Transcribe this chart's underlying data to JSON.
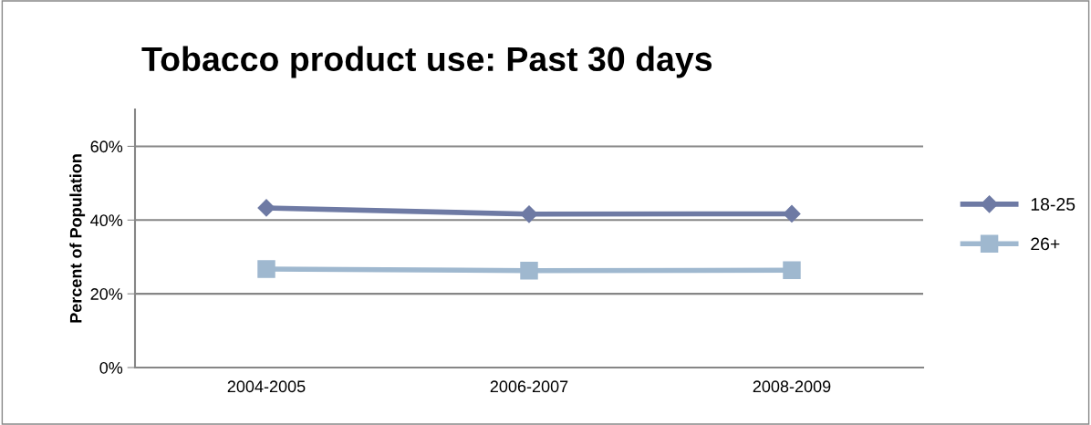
{
  "chart_data": {
    "type": "line",
    "title": "Tobacco product use: Past 30 days",
    "ylabel": "Percent of Population",
    "categories": [
      "2004-2005",
      "2006-2007",
      "2008-2009"
    ],
    "series": [
      {
        "name": "18-25",
        "color": "#6e7aa4",
        "values": [
          43.3,
          41.6,
          41.7
        ],
        "marker": "diamond"
      },
      {
        "name": "26+",
        "color": "#9fb8cf",
        "values": [
          26.7,
          26.3,
          26.4
        ],
        "marker": "square"
      }
    ],
    "ylim": [
      0,
      70
    ],
    "yticks": [
      {
        "value": 0,
        "label": "0%"
      },
      {
        "value": 20,
        "label": "20%"
      },
      {
        "value": 40,
        "label": "40%"
      },
      {
        "value": 60,
        "label": "60%"
      }
    ],
    "grid": "y",
    "legend": "right",
    "line_style": "solid"
  }
}
